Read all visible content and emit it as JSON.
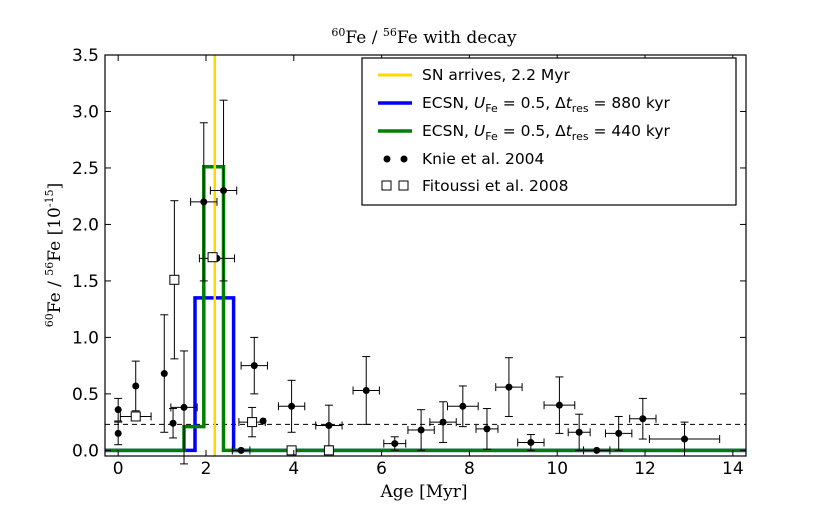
{
  "chart_data": {
    "type": "scatter",
    "title": {
      "sup1": "60",
      "mid": "Fe / ",
      "sup2": "56",
      "tail": "Fe with decay"
    },
    "xlabel": "Age [Myr]",
    "ylabel": {
      "sup1": "60",
      "mid": "Fe / ",
      "sup2": "56",
      "tail": "Fe [10",
      "sup3": "-15",
      "end": "]"
    },
    "xlim": [
      -0.3,
      14.3
    ],
    "ylim": [
      -0.05,
      3.5
    ],
    "x_ticks": [
      0,
      2,
      4,
      6,
      8,
      10,
      12,
      14
    ],
    "y_ticks": [
      0.0,
      0.5,
      1.0,
      1.5,
      2.0,
      2.5,
      3.0,
      3.5
    ],
    "x_tick_labels": [
      "0",
      "2",
      "4",
      "6",
      "8",
      "10",
      "12",
      "14"
    ],
    "y_tick_labels": [
      "0.0",
      "0.5",
      "1.0",
      "1.5",
      "2.0",
      "2.5",
      "3.0",
      "3.5"
    ],
    "grid": false,
    "legend_position": "top-right",
    "legend": [
      {
        "text": "SN arrives, 2.2 Myr",
        "color": "#ffd700",
        "marker": "line"
      },
      {
        "text_pre": "ECSN, ",
        "text_U": "U",
        "text_Usub": "Fe",
        "text_mid": " = 0.5, Δ",
        "text_t": "t",
        "text_tsub": "res",
        "text_end": " = 880 kyr",
        "color": "#0000ff",
        "marker": "line"
      },
      {
        "text_pre": "ECSN, ",
        "text_U": "U",
        "text_Usub": "Fe",
        "text_mid": " = 0.5, Δ",
        "text_t": "t",
        "text_tsub": "res",
        "text_end": " = 440 kyr",
        "color": "#008000",
        "marker": "line"
      },
      {
        "text": "Knie et al. 2004",
        "color": "#000000",
        "marker": "filled-circle"
      },
      {
        "text": "Fitoussi et al. 2008",
        "color": "#000000",
        "marker": "open-square"
      }
    ],
    "sn_arrival_x": 2.2,
    "baseline_y": 0.23,
    "series": [
      {
        "name": "ECSN, U_Fe = 0.5, Δt_res = 880 kyr",
        "color": "#0000ff",
        "type": "step",
        "segments": [
          [
            -0.3,
            0.0
          ],
          [
            1.75,
            0.0
          ],
          [
            1.75,
            1.35
          ],
          [
            2.63,
            1.35
          ],
          [
            2.63,
            0.0
          ],
          [
            14.3,
            0.0
          ]
        ]
      },
      {
        "name": "ECSN, U_Fe = 0.5, Δt_res = 440 kyr",
        "color": "#008000",
        "type": "step",
        "segments": [
          [
            -0.3,
            0.0
          ],
          [
            1.5,
            0.0
          ],
          [
            1.5,
            0.21
          ],
          [
            1.95,
            0.21
          ],
          [
            1.95,
            2.51
          ],
          [
            2.4,
            2.51
          ],
          [
            2.4,
            0.0
          ],
          [
            14.3,
            0.0
          ]
        ]
      },
      {
        "name": "Knie et al. 2004",
        "marker": "filled-circle",
        "points": [
          {
            "x": 0.0,
            "y": 0.36,
            "xerr": 0.0,
            "yerr": 0.1
          },
          {
            "x": 0.0,
            "y": 0.15,
            "xerr": 0.0,
            "yerr": 0.1
          },
          {
            "x": 0.4,
            "y": 0.57,
            "xerr": 0.0,
            "yerr": 0.22
          },
          {
            "x": 1.05,
            "y": 0.68,
            "xerr": 0.0,
            "yerr": 0.52
          },
          {
            "x": 1.25,
            "y": 0.24,
            "xerr": 0.0,
            "yerr": 0.13
          },
          {
            "x": 1.5,
            "y": 0.38,
            "xerr": 0.3,
            "yerr": 0.5
          },
          {
            "x": 1.95,
            "y": 2.2,
            "xerr": 0.3,
            "yerr": 0.7
          },
          {
            "x": 2.4,
            "y": 2.3,
            "xerr": 0.3,
            "yerr": 0.8
          },
          {
            "x": 2.25,
            "y": 1.7,
            "xerr": 0.4,
            "yerr": 0.0
          },
          {
            "x": 2.8,
            "y": 0.0,
            "xerr": 0.2,
            "yerr": 0.0
          },
          {
            "x": 3.1,
            "y": 0.75,
            "xerr": 0.3,
            "yerr": 0.25
          },
          {
            "x": 3.3,
            "y": 0.26,
            "xerr": 0.0,
            "yerr": 0.0
          },
          {
            "x": 3.95,
            "y": 0.39,
            "xerr": 0.3,
            "yerr": 0.23
          },
          {
            "x": 4.8,
            "y": 0.22,
            "xerr": 0.3,
            "yerr": 0.18
          },
          {
            "x": 5.65,
            "y": 0.53,
            "xerr": 0.3,
            "yerr": 0.3
          },
          {
            "x": 6.3,
            "y": 0.06,
            "xerr": 0.25,
            "yerr": 0.06
          },
          {
            "x": 6.9,
            "y": 0.18,
            "xerr": 0.3,
            "yerr": 0.18
          },
          {
            "x": 7.4,
            "y": 0.25,
            "xerr": 0.3,
            "yerr": 0.18
          },
          {
            "x": 7.85,
            "y": 0.39,
            "xerr": 0.35,
            "yerr": 0.18
          },
          {
            "x": 8.4,
            "y": 0.19,
            "xerr": 0.25,
            "yerr": 0.18
          },
          {
            "x": 8.9,
            "y": 0.56,
            "xerr": 0.3,
            "yerr": 0.26
          },
          {
            "x": 9.4,
            "y": 0.07,
            "xerr": 0.3,
            "yerr": 0.07
          },
          {
            "x": 10.05,
            "y": 0.4,
            "xerr": 0.35,
            "yerr": 0.25
          },
          {
            "x": 10.5,
            "y": 0.16,
            "xerr": 0.25,
            "yerr": 0.16
          },
          {
            "x": 10.9,
            "y": 0.0,
            "xerr": 0.3,
            "yerr": 0.0
          },
          {
            "x": 11.4,
            "y": 0.15,
            "xerr": 0.3,
            "yerr": 0.15
          },
          {
            "x": 11.95,
            "y": 0.28,
            "xerr": 0.3,
            "yerr": 0.18
          },
          {
            "x": 12.9,
            "y": 0.1,
            "xerr": 0.8,
            "yerr": 0.15
          }
        ]
      },
      {
        "name": "Fitoussi et al. 2008",
        "marker": "open-square",
        "points": [
          {
            "x": 0.4,
            "y": 0.3,
            "xerr": 0.35,
            "yerr": 0.0
          },
          {
            "x": 1.28,
            "y": 1.51,
            "xerr": 0.0,
            "yerr": 0.7
          },
          {
            "x": 2.15,
            "y": 1.71,
            "xerr": 0.0,
            "yerr": 0.0
          },
          {
            "x": 3.05,
            "y": 0.25,
            "xerr": 0.3,
            "yerr": 0.13
          },
          {
            "x": 3.95,
            "y": 0.0,
            "xerr": 0.0,
            "yerr": 0.0
          },
          {
            "x": 4.8,
            "y": 0.0,
            "xerr": 0.0,
            "yerr": 0.0
          }
        ]
      }
    ]
  }
}
